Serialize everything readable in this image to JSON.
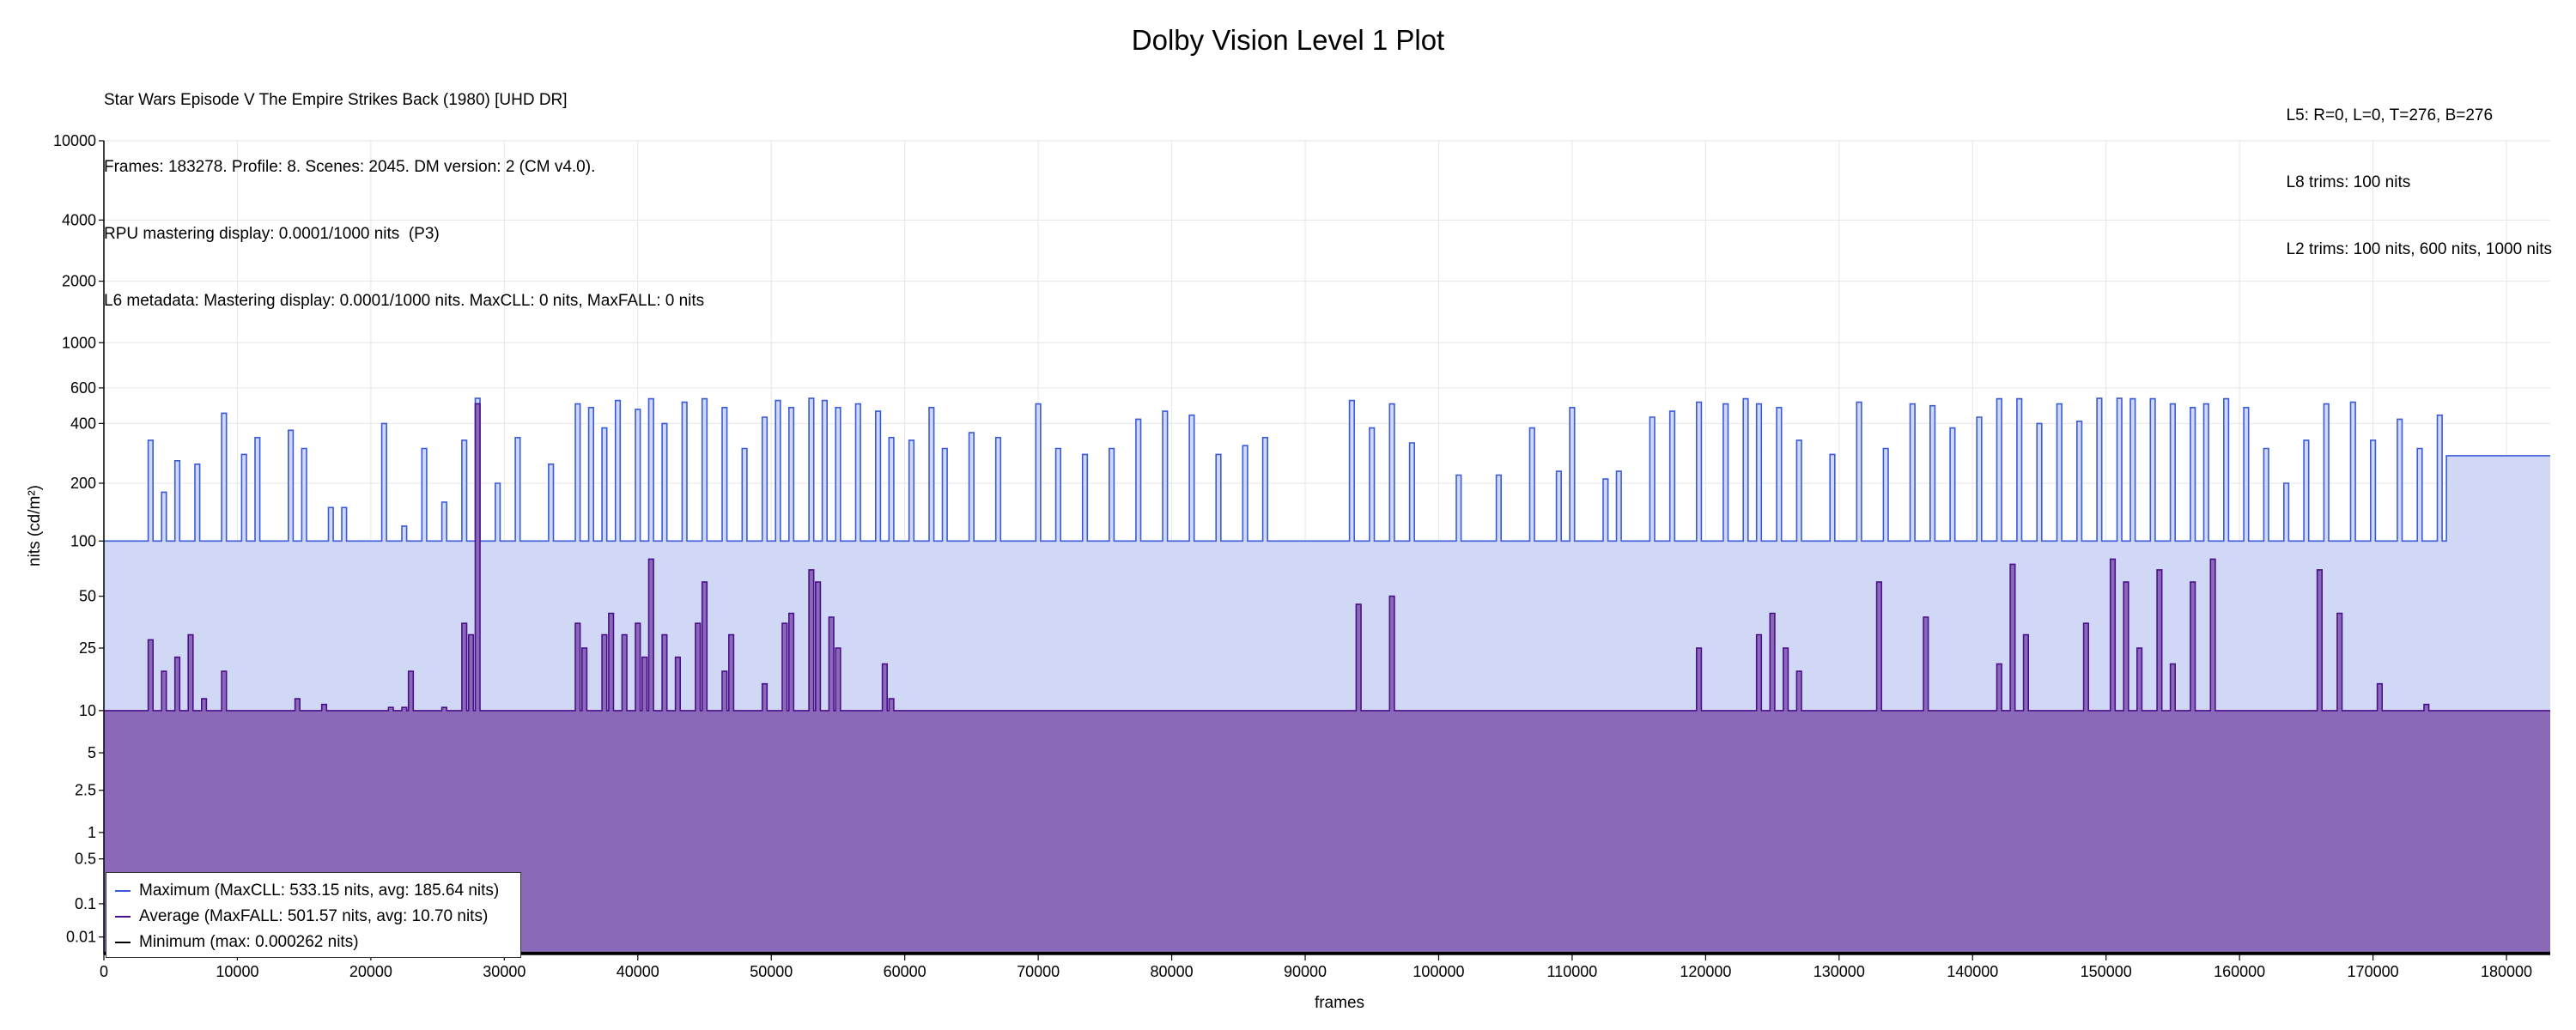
{
  "chart_data": {
    "type": "area",
    "title": "Dolby Vision Level 1 Plot",
    "info_left": [
      "Star Wars Episode V The Empire Strikes Back (1980) [UHD DR]",
      "Frames: 183278. Profile: 8. Scenes: 2045. DM version: 2 (CM v4.0).",
      "RPU mastering display: 0.0001/1000 nits  (P3)",
      "L6 metadata: Mastering display: 0.0001/1000 nits. MaxCLL: 0 nits, MaxFALL: 0 nits"
    ],
    "info_right": [
      "L5: R=0, L=0, T=276, B=276",
      "L8 trims: 100 nits",
      "L2 trims: 100 nits, 600 nits, 1000 nits"
    ],
    "xlabel": "frames",
    "ylabel": "nits (cd/m²)",
    "xlim": [
      0,
      183278
    ],
    "ylim": [
      0.005,
      10000
    ],
    "y_scale": "log-like (PQ)",
    "x_ticks": [
      0,
      10000,
      20000,
      30000,
      40000,
      50000,
      60000,
      70000,
      80000,
      90000,
      100000,
      110000,
      120000,
      130000,
      140000,
      150000,
      160000,
      170000,
      180000
    ],
    "y_ticks": [
      "0.01",
      "0.1",
      "0.5",
      "1",
      "2.5",
      "5",
      "10",
      "25",
      "50",
      "100",
      "200",
      "400",
      "600",
      "1000",
      "2000",
      "4000",
      "10000"
    ],
    "grid": true,
    "legend_position": "bottom-left",
    "series": [
      {
        "name": "Maximum (MaxCLL: 533.15 nits, avg: 185.64 nits)",
        "color": "#3a5bd9",
        "fill": "#d0d8f6",
        "base": 100,
        "peaks": [
          [
            3500,
            330
          ],
          [
            4500,
            180
          ],
          [
            5500,
            260
          ],
          [
            7000,
            250
          ],
          [
            9000,
            450
          ],
          [
            10500,
            280
          ],
          [
            11500,
            340
          ],
          [
            14000,
            370
          ],
          [
            15000,
            300
          ],
          [
            17000,
            150
          ],
          [
            18000,
            150
          ],
          [
            21000,
            400
          ],
          [
            22500,
            120
          ],
          [
            24000,
            300
          ],
          [
            25500,
            160
          ],
          [
            27000,
            330
          ],
          [
            28000,
            533
          ],
          [
            29500,
            200
          ],
          [
            31000,
            340
          ],
          [
            33500,
            250
          ],
          [
            35500,
            500
          ],
          [
            36500,
            480
          ],
          [
            37500,
            380
          ],
          [
            38500,
            520
          ],
          [
            40000,
            470
          ],
          [
            41000,
            530
          ],
          [
            42000,
            400
          ],
          [
            43500,
            510
          ],
          [
            45000,
            530
          ],
          [
            46500,
            480
          ],
          [
            48000,
            300
          ],
          [
            49500,
            430
          ],
          [
            50500,
            520
          ],
          [
            51500,
            480
          ],
          [
            53000,
            533
          ],
          [
            54000,
            520
          ],
          [
            55000,
            480
          ],
          [
            56500,
            500
          ],
          [
            58000,
            460
          ],
          [
            59000,
            340
          ],
          [
            60500,
            330
          ],
          [
            62000,
            480
          ],
          [
            63000,
            300
          ],
          [
            65000,
            360
          ],
          [
            67000,
            340
          ],
          [
            70000,
            500
          ],
          [
            71500,
            300
          ],
          [
            73500,
            280
          ],
          [
            75500,
            300
          ],
          [
            77500,
            420
          ],
          [
            79500,
            460
          ],
          [
            81500,
            440
          ],
          [
            83500,
            280
          ],
          [
            85500,
            310
          ],
          [
            87000,
            340
          ],
          [
            93500,
            520
          ],
          [
            95000,
            380
          ],
          [
            96500,
            500
          ],
          [
            98000,
            320
          ],
          [
            101500,
            220
          ],
          [
            104500,
            220
          ],
          [
            107000,
            380
          ],
          [
            109000,
            230
          ],
          [
            110000,
            480
          ],
          [
            112500,
            210
          ],
          [
            113500,
            230
          ],
          [
            116000,
            430
          ],
          [
            117500,
            460
          ],
          [
            119500,
            510
          ],
          [
            121500,
            500
          ],
          [
            123000,
            530
          ],
          [
            124000,
            500
          ],
          [
            125500,
            480
          ],
          [
            127000,
            330
          ],
          [
            129500,
            280
          ],
          [
            131500,
            510
          ],
          [
            133500,
            300
          ],
          [
            135500,
            500
          ],
          [
            137000,
            490
          ],
          [
            138500,
            380
          ],
          [
            140500,
            430
          ],
          [
            142000,
            530
          ],
          [
            143500,
            530
          ],
          [
            145000,
            400
          ],
          [
            146500,
            500
          ],
          [
            148000,
            410
          ],
          [
            149500,
            533
          ],
          [
            151000,
            533
          ],
          [
            152000,
            530
          ],
          [
            153500,
            530
          ],
          [
            155000,
            500
          ],
          [
            156500,
            480
          ],
          [
            157500,
            500
          ],
          [
            159000,
            530
          ],
          [
            160500,
            480
          ],
          [
            162000,
            300
          ],
          [
            163500,
            200
          ],
          [
            165000,
            330
          ],
          [
            166500,
            500
          ],
          [
            168500,
            510
          ],
          [
            170000,
            330
          ],
          [
            172000,
            420
          ],
          [
            173500,
            300
          ],
          [
            175000,
            440
          ]
        ],
        "tail": [
          [
            175500,
            276
          ],
          [
            183278,
            276
          ]
        ]
      },
      {
        "name": "Average (MaxFALL: 501.57 nits, avg: 10.70 nits)",
        "color": "#4b0f8c",
        "fill": "#8a6ab8",
        "base": 10,
        "peaks": [
          [
            3500,
            28
          ],
          [
            4500,
            18
          ],
          [
            5500,
            22
          ],
          [
            6500,
            30
          ],
          [
            7500,
            12
          ],
          [
            9000,
            18
          ],
          [
            14500,
            12
          ],
          [
            16500,
            11
          ],
          [
            21500,
            10.5
          ],
          [
            22500,
            10.5
          ],
          [
            23000,
            18
          ],
          [
            25500,
            10.5
          ],
          [
            27000,
            35
          ],
          [
            27500,
            30
          ],
          [
            28000,
            501
          ],
          [
            35500,
            35
          ],
          [
            36000,
            25
          ],
          [
            37500,
            30
          ],
          [
            38000,
            40
          ],
          [
            39000,
            30
          ],
          [
            40000,
            35
          ],
          [
            40500,
            22
          ],
          [
            41000,
            80
          ],
          [
            42000,
            30
          ],
          [
            43000,
            22
          ],
          [
            44500,
            35
          ],
          [
            45000,
            60
          ],
          [
            46500,
            18
          ],
          [
            47000,
            30
          ],
          [
            49500,
            15
          ],
          [
            51000,
            35
          ],
          [
            51500,
            40
          ],
          [
            53000,
            70
          ],
          [
            53500,
            60
          ],
          [
            54500,
            38
          ],
          [
            55000,
            25
          ],
          [
            58500,
            20
          ],
          [
            59000,
            12
          ],
          [
            94000,
            45
          ],
          [
            96500,
            50
          ],
          [
            119500,
            25
          ],
          [
            124000,
            30
          ],
          [
            125000,
            40
          ],
          [
            126000,
            25
          ],
          [
            127000,
            18
          ],
          [
            133000,
            60
          ],
          [
            136500,
            38
          ],
          [
            142000,
            20
          ],
          [
            143000,
            75
          ],
          [
            144000,
            30
          ],
          [
            148500,
            35
          ],
          [
            150500,
            80
          ],
          [
            151500,
            60
          ],
          [
            152500,
            25
          ],
          [
            154000,
            70
          ],
          [
            155000,
            20
          ],
          [
            156500,
            60
          ],
          [
            158000,
            80
          ],
          [
            166000,
            70
          ],
          [
            167500,
            40
          ],
          [
            170500,
            15
          ],
          [
            174000,
            11
          ]
        ],
        "tail": []
      },
      {
        "name": "Minimum (max: 0.000262 nits)",
        "color": "#000000",
        "fill": "none",
        "base": 0.0001,
        "peaks": [],
        "tail": []
      }
    ]
  }
}
